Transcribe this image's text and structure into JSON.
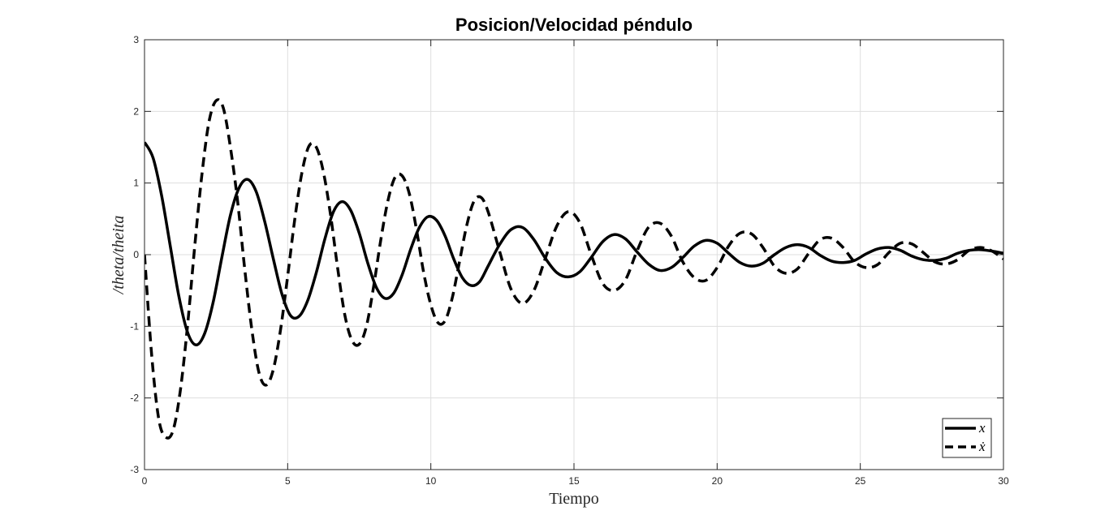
{
  "chart_data": {
    "type": "line",
    "title": "Posicion/Velocidad péndulo",
    "xlabel": "Tiempo",
    "ylabel": "/theta/theita",
    "xlim": [
      0,
      30
    ],
    "ylim": [
      -3,
      3
    ],
    "xticks": [
      0,
      5,
      10,
      15,
      20,
      25,
      30
    ],
    "xtick_labels": [
      "0",
      "5",
      "10",
      "15",
      "20",
      "25",
      "30"
    ],
    "yticks": [
      -3,
      -2,
      -1,
      0,
      1,
      2,
      3
    ],
    "ytick_labels": [
      "-3",
      "-2",
      "-1",
      "0",
      "1",
      "2",
      "3"
    ],
    "grid": true,
    "legend_position": "bottom-right",
    "series": [
      {
        "name": "x",
        "style": "solid",
        "color": "#000000",
        "x": [
          0,
          0.3,
          0.6,
          0.9,
          1.2,
          1.5,
          1.8,
          2.1,
          2.4,
          2.7,
          3.0,
          3.3,
          3.6,
          3.9,
          4.2,
          4.5,
          4.8,
          5.1,
          5.4,
          5.7,
          6.0,
          6.3,
          6.6,
          6.9,
          7.2,
          7.5,
          7.8,
          8.1,
          8.4,
          8.7,
          9.0,
          9.3,
          9.6,
          9.9,
          10.2,
          10.5,
          10.8,
          11.1,
          11.4,
          11.7,
          12.0,
          12.4,
          12.8,
          13.2,
          13.6,
          14.0,
          14.4,
          14.8,
          15.2,
          15.6,
          16.0,
          16.4,
          16.8,
          17.2,
          17.6,
          18.0,
          18.4,
          18.8,
          19.2,
          19.6,
          20.0,
          20.4,
          20.8,
          21.2,
          21.6,
          22.0,
          22.4,
          22.8,
          23.2,
          23.6,
          24.0,
          24.4,
          24.8,
          25.2,
          25.6,
          26.0,
          26.4,
          26.8,
          27.2,
          27.6,
          28.0,
          28.4,
          28.8,
          29.2,
          29.6,
          30.0
        ],
        "y": [
          1.57,
          1.35,
          0.82,
          0.12,
          -0.58,
          -1.08,
          -1.26,
          -1.1,
          -0.66,
          -0.04,
          0.55,
          0.93,
          1.05,
          0.88,
          0.46,
          -0.06,
          -0.55,
          -0.85,
          -0.86,
          -0.64,
          -0.25,
          0.22,
          0.6,
          0.74,
          0.62,
          0.3,
          -0.12,
          -0.46,
          -0.61,
          -0.54,
          -0.28,
          0.08,
          0.38,
          0.53,
          0.48,
          0.26,
          -0.06,
          -0.32,
          -0.43,
          -0.38,
          -0.16,
          0.14,
          0.35,
          0.38,
          0.21,
          -0.05,
          -0.25,
          -0.31,
          -0.24,
          -0.04,
          0.18,
          0.28,
          0.22,
          0.04,
          -0.13,
          -0.22,
          -0.18,
          -0.04,
          0.12,
          0.2,
          0.16,
          0.02,
          -0.11,
          -0.16,
          -0.12,
          0.0,
          0.1,
          0.14,
          0.1,
          -0.01,
          -0.09,
          -0.11,
          -0.08,
          0.01,
          0.08,
          0.1,
          0.06,
          -0.02,
          -0.07,
          -0.08,
          -0.05,
          0.02,
          0.06,
          0.07,
          0.05,
          0.02
        ]
      },
      {
        "name": "ẋ",
        "style": "dashed",
        "color": "#000000",
        "x": [
          0,
          0.25,
          0.5,
          0.75,
          1.0,
          1.25,
          1.5,
          1.75,
          2.0,
          2.25,
          2.5,
          2.75,
          3.0,
          3.25,
          3.5,
          3.75,
          4.0,
          4.25,
          4.5,
          4.75,
          5.0,
          5.25,
          5.5,
          5.75,
          6.0,
          6.25,
          6.5,
          6.75,
          7.0,
          7.25,
          7.5,
          7.75,
          8.0,
          8.25,
          8.5,
          8.75,
          9.0,
          9.25,
          9.5,
          9.75,
          10.0,
          10.25,
          10.5,
          10.75,
          11.0,
          11.25,
          11.5,
          11.75,
          12.0,
          12.4,
          12.8,
          13.2,
          13.6,
          14.0,
          14.4,
          14.8,
          15.2,
          15.6,
          16.0,
          16.4,
          16.8,
          17.2,
          17.6,
          18.0,
          18.4,
          18.8,
          19.2,
          19.6,
          20.0,
          20.4,
          20.8,
          21.2,
          21.6,
          22.0,
          22.4,
          22.8,
          23.2,
          23.6,
          24.0,
          24.4,
          24.8,
          25.2,
          25.6,
          26.0,
          26.4,
          26.8,
          27.2,
          27.6,
          28.0,
          28.4,
          28.8,
          29.2,
          29.6,
          30.0
        ],
        "y": [
          0,
          -1.4,
          -2.3,
          -2.55,
          -2.45,
          -1.9,
          -1.0,
          0.1,
          1.1,
          1.85,
          2.15,
          2.05,
          1.5,
          0.75,
          -0.2,
          -1.05,
          -1.65,
          -1.82,
          -1.6,
          -1.05,
          -0.3,
          0.5,
          1.15,
          1.52,
          1.5,
          1.15,
          0.55,
          -0.2,
          -0.85,
          -1.2,
          -1.25,
          -1.0,
          -0.45,
          0.2,
          0.75,
          1.08,
          1.1,
          0.85,
          0.35,
          -0.25,
          -0.7,
          -0.95,
          -0.92,
          -0.6,
          -0.1,
          0.4,
          0.74,
          0.8,
          0.6,
          0.05,
          -0.48,
          -0.68,
          -0.5,
          -0.05,
          0.4,
          0.6,
          0.45,
          0.0,
          -0.4,
          -0.5,
          -0.35,
          0.05,
          0.38,
          0.44,
          0.26,
          -0.1,
          -0.32,
          -0.36,
          -0.18,
          0.12,
          0.3,
          0.29,
          0.1,
          -0.16,
          -0.26,
          -0.2,
          0.02,
          0.21,
          0.23,
          0.1,
          -0.1,
          -0.18,
          -0.14,
          0.03,
          0.16,
          0.15,
          0.03,
          -0.1,
          -0.13,
          -0.07,
          0.06,
          0.1,
          0.05,
          -0.06
        ]
      }
    ]
  }
}
